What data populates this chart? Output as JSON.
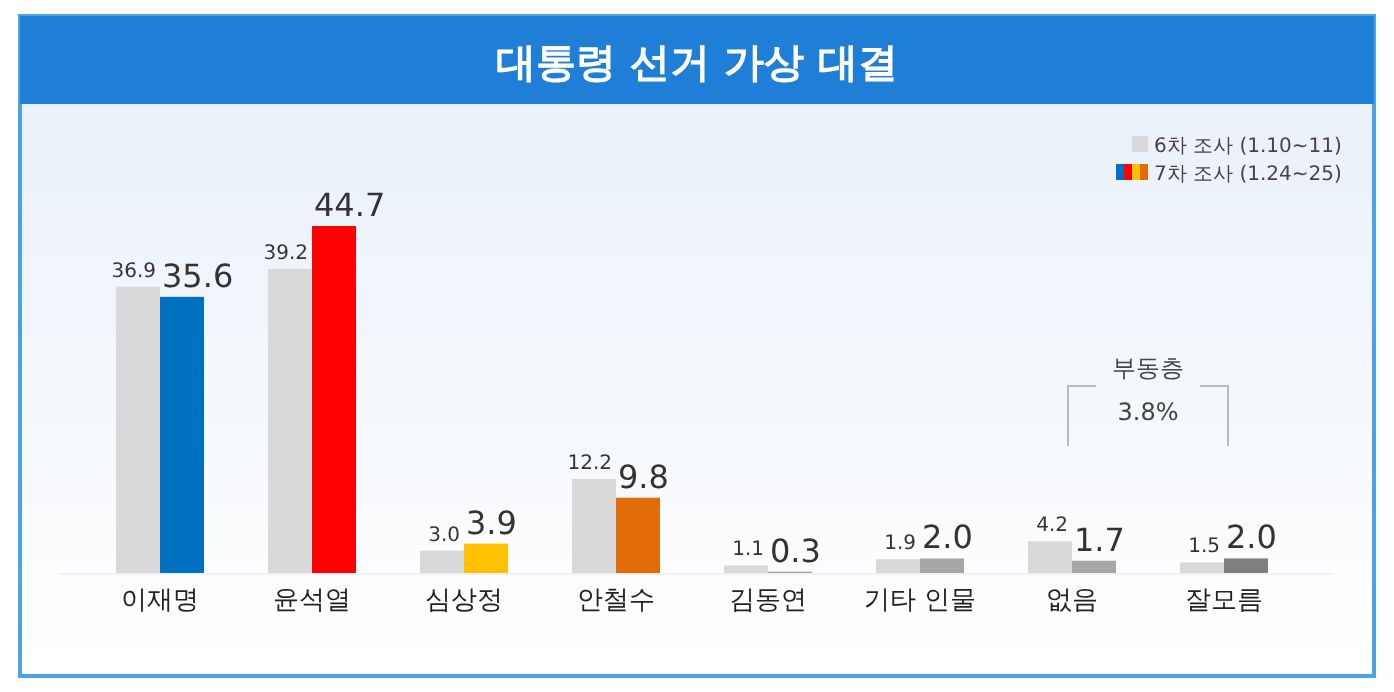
{
  "chart_data": {
    "type": "bar",
    "title": "대통령 선거 가상 대결",
    "categories": [
      "이재명",
      "윤석열",
      "심상정",
      "안철수",
      "김동연",
      "기타 인물",
      "없음",
      "잘모름"
    ],
    "series": [
      {
        "name": "6차 조사 (1.10~11)",
        "color": "#d9d9d9",
        "values": [
          36.9,
          39.2,
          3.0,
          12.2,
          1.1,
          1.9,
          4.2,
          1.5
        ],
        "value_labels": [
          "36.9",
          "39.2",
          "3.0",
          "12.2",
          "1.1",
          "1.9",
          "4.2",
          "1.5"
        ]
      },
      {
        "name": "7차 조사 (1.24~25)",
        "colors": [
          "#0070c0",
          "#ff0000",
          "#ffc000",
          "#e36c0a",
          "#a6a6a6",
          "#a6a6a6",
          "#a6a6a6",
          "#7f7f7f"
        ],
        "values": [
          35.6,
          44.7,
          3.9,
          9.8,
          0.3,
          2.0,
          1.7,
          2.0
        ],
        "value_labels": [
          "35.6",
          "44.7",
          "3.9",
          "9.8",
          "0.3",
          "2.0",
          "1.7",
          "2.0"
        ]
      }
    ],
    "legend": "top right",
    "annotations": [
      "부동층",
      "3.8%"
    ]
  }
}
